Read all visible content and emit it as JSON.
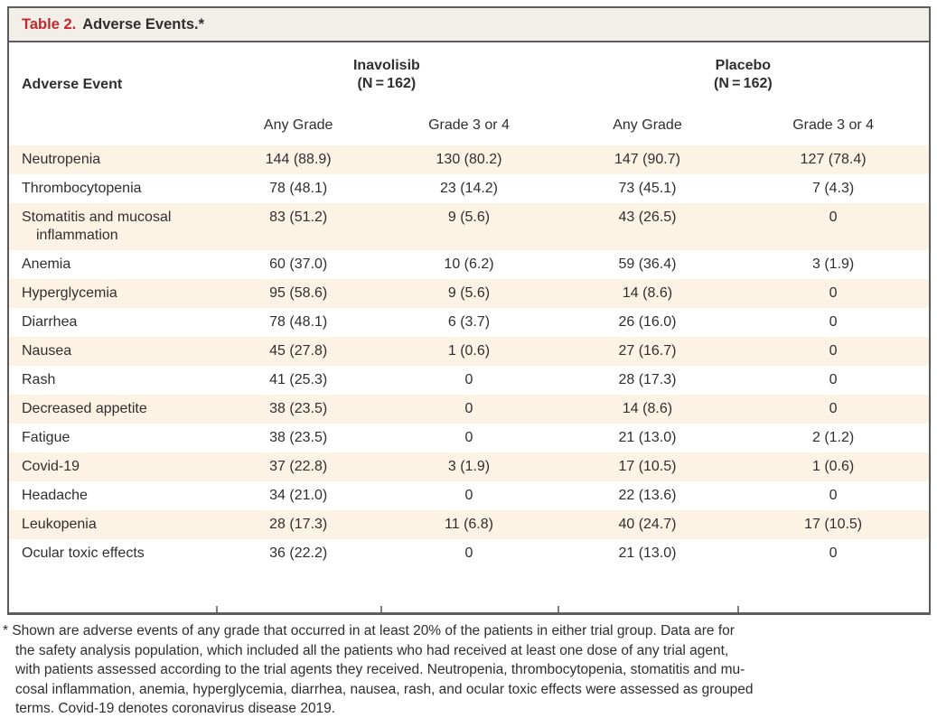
{
  "title": {
    "label": "Table 2.",
    "text": "Adverse Events.*"
  },
  "columns": {
    "event_header": "Adverse Event",
    "groups": [
      {
        "name": "Inavolisib",
        "n": "(N = 162)"
      },
      {
        "name": "Placebo",
        "n": "(N = 162)"
      }
    ],
    "subheaders": [
      "Any Grade",
      "Grade 3 or 4",
      "Any Grade",
      "Grade 3 or 4"
    ]
  },
  "rows": [
    {
      "event": "Neutropenia",
      "values": [
        "144 (88.9)",
        "130 (80.2)",
        "147 (90.7)",
        "127 (78.4)"
      ]
    },
    {
      "event": "Thrombocytopenia",
      "values": [
        "78 (48.1)",
        "23 (14.2)",
        "73 (45.1)",
        "7 (4.3)"
      ]
    },
    {
      "event": "Stomatitis and mucosal inflammation",
      "values": [
        "83 (51.2)",
        "9 (5.6)",
        "43 (26.5)",
        "0"
      ]
    },
    {
      "event": "Anemia",
      "values": [
        "60 (37.0)",
        "10 (6.2)",
        "59 (36.4)",
        "3 (1.9)"
      ]
    },
    {
      "event": "Hyperglycemia",
      "values": [
        "95 (58.6)",
        "9 (5.6)",
        "14 (8.6)",
        "0"
      ]
    },
    {
      "event": "Diarrhea",
      "values": [
        "78 (48.1)",
        "6 (3.7)",
        "26 (16.0)",
        "0"
      ]
    },
    {
      "event": "Nausea",
      "values": [
        "45 (27.8)",
        "1 (0.6)",
        "27 (16.7)",
        "0"
      ]
    },
    {
      "event": "Rash",
      "values": [
        "41 (25.3)",
        "0",
        "28 (17.3)",
        "0"
      ]
    },
    {
      "event": "Decreased appetite",
      "values": [
        "38 (23.5)",
        "0",
        "14 (8.6)",
        "0"
      ]
    },
    {
      "event": "Fatigue",
      "values": [
        "38 (23.5)",
        "0",
        "21 (13.0)",
        "2 (1.2)"
      ]
    },
    {
      "event": "Covid-19",
      "values": [
        "37 (22.8)",
        "3 (1.9)",
        "17 (10.5)",
        "1 (0.6)"
      ]
    },
    {
      "event": "Headache",
      "values": [
        "34 (21.0)",
        "0",
        "22 (13.6)",
        "0"
      ]
    },
    {
      "event": "Leukopenia",
      "values": [
        "28 (17.3)",
        "11 (6.8)",
        "40 (24.7)",
        "17 (10.5)"
      ]
    },
    {
      "event": "Ocular toxic effects",
      "values": [
        "36 (22.2)",
        "0",
        "21 (13.0)",
        "0"
      ]
    }
  ],
  "footnote_lines": [
    "* Shown are adverse events of any grade that occurred in at least 20% of the patients in either trial group. Data are for",
    "the safety analysis population, which included all the patients who had received at least one dose of any trial agent,",
    "with patients assessed according to the trial agents they received. Neutropenia, thrombocytopenia, stomatitis and mu-",
    "cosal inflammation, anemia, hyperglycemia, diarrhea, nausea, rash, and ocular toxic effects were assessed as grouped",
    "terms. Covid-19 denotes coronavirus disease 2019."
  ],
  "colors": {
    "title_label_red": "#c5282c",
    "title_bar_background": "#f2efe8",
    "row_stripe_background": "#fdf3e5",
    "border_gray": "#5b5c5e",
    "text": "#2f2e30"
  }
}
